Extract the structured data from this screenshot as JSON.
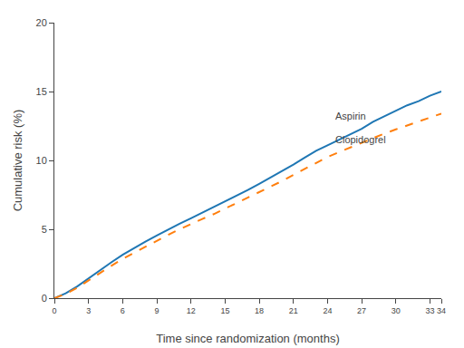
{
  "chart_data": {
    "type": "line",
    "x_label": "Time since randomization (months)",
    "y_label": "Cumulative risk (%)",
    "x": [
      0,
      1,
      2,
      3,
      4,
      5,
      6,
      7,
      8,
      9,
      10,
      11,
      12,
      13,
      14,
      15,
      16,
      17,
      18,
      19,
      20,
      21,
      22,
      23,
      24,
      25,
      26,
      27,
      28,
      29,
      30,
      31,
      32,
      33,
      34
    ],
    "series": [
      {
        "values": [
          0,
          0.35,
          0.85,
          1.45,
          2.05,
          2.6,
          3.15,
          3.65,
          4.1,
          4.55,
          5.0,
          5.4,
          5.8,
          6.2,
          6.6,
          7.0,
          7.4,
          7.85,
          8.3,
          8.75,
          9.2,
          9.7,
          10.2,
          10.7,
          11.1,
          11.5,
          11.9,
          12.3,
          12.8,
          13.2,
          13.6,
          14.0,
          14.3,
          14.7,
          15.0
        ],
        "line_style": "solid"
      },
      {
        "values": [
          0,
          0.3,
          0.75,
          1.3,
          1.85,
          2.35,
          2.85,
          3.3,
          3.75,
          4.2,
          4.6,
          5.0,
          5.4,
          5.75,
          6.1,
          6.5,
          6.85,
          7.25,
          7.65,
          8.05,
          8.5,
          8.95,
          9.4,
          9.85,
          10.25,
          10.6,
          10.95,
          11.3,
          11.65,
          11.95,
          12.25,
          12.55,
          12.8,
          13.1,
          13.4
        ],
        "line_style": "dashed"
      }
    ],
    "annotations": [
      {
        "text": "Aspirin",
        "x": 24.5,
        "y": 13.2
      },
      {
        "text": "Clopidogrel",
        "x": 24.5,
        "y": 11.5
      }
    ],
    "xlim": [
      0,
      34
    ],
    "xticks": [
      0,
      3,
      6,
      9,
      12,
      15,
      18,
      21,
      24,
      27,
      30,
      33,
      34
    ],
    "ylim": [
      0,
      20
    ],
    "yticks": [
      0,
      5,
      10,
      15,
      20
    ],
    "grid": false
  }
}
